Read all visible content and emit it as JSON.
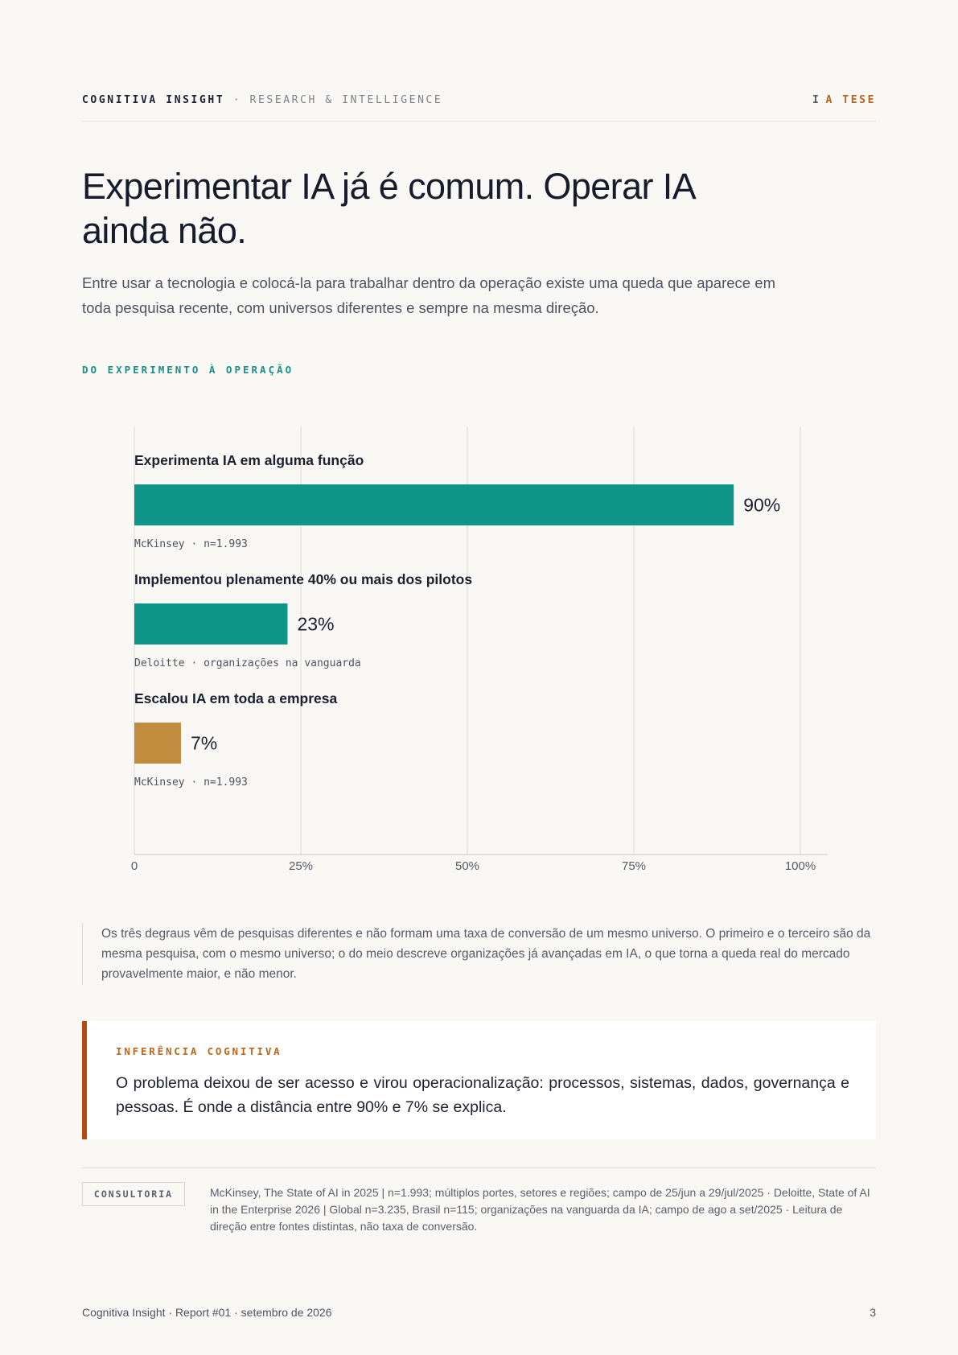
{
  "header": {
    "brand": "COGNITIVA INSIGHT",
    "brand_separator": " · ",
    "brand_tagline": "RESEARCH & INTELLIGENCE",
    "section_number": "I",
    "section_name": "A TESE"
  },
  "headline": "Experimentar IA já é comum. Operar IA ainda não.",
  "lede": "Entre usar a tecnologia e colocá-la para trabalhar dentro da operação existe uma queda que aparece em toda pesquisa recente, com universos diferentes e sempre na mesma direção.",
  "eyebrow": "DO EXPERIMENTO À OPERAÇÃO",
  "chart_data": {
    "type": "bar",
    "orientation": "horizontal",
    "categories": [
      "Experimenta IA em alguma função",
      "Implementou plenamente 40% ou mais dos pilotos",
      "Escalou IA em toda a empresa"
    ],
    "values": [
      90,
      23,
      7
    ],
    "value_labels": [
      "90%",
      "23%",
      "7%"
    ],
    "sources": [
      "McKinsey · n=1.993",
      "Deloitte · organizações na vanguarda",
      "McKinsey · n=1.993"
    ],
    "bar_colors": [
      "#0f9488",
      "#0f9488",
      "#c28c3e"
    ],
    "xlim": [
      0,
      100
    ],
    "x_ticks": [
      0,
      25,
      50,
      75,
      100
    ],
    "x_tick_labels": [
      "0",
      "25%",
      "50%",
      "75%",
      "100%"
    ],
    "grid": true
  },
  "note": "Os três degraus vêm de pesquisas diferentes e não formam uma taxa de conversão de um mesmo universo. O primeiro e o terceiro são da mesma pesquisa, com o mesmo universo; o do meio descreve organizações já avançadas em IA, o que torna a queda real do mercado provavelmente maior, e não menor.",
  "callout": {
    "label": "INFERÊNCIA COGNITIVA",
    "text": "O problema deixou de ser acesso e virou operacionalização: processos, sistemas, dados, governança e pessoas. É onde a distância entre 90% e 7% se explica."
  },
  "sources": {
    "tag": "CONSULTORIA",
    "text": "McKinsey, The State of AI in 2025 | n=1.993; múltiplos portes, setores e regiões; campo de 25/jun a 29/jul/2025 · Deloitte, State of AI in the Enterprise 2026 | Global n=3.235, Brasil n=115; organizações na vanguarda da IA; campo de ago a set/2025 · Leitura de direção entre fontes distintas, não taxa de conversão."
  },
  "footer": {
    "left": "Cognitiva Insight · Report #01 · setembro de 2026",
    "page_number": "3"
  }
}
